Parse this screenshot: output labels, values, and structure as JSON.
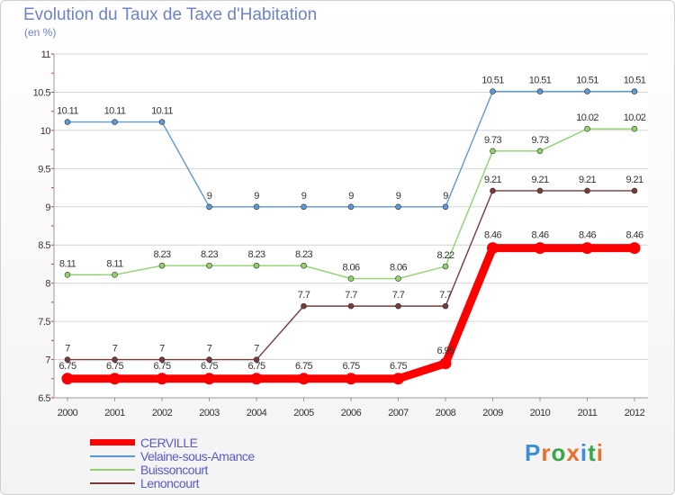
{
  "title": "Evolution du Taux de Taxe d'Habitation",
  "subtitle": "(en %)",
  "logo": {
    "text": "Proxiti",
    "colors": [
      "#3a8fd8",
      "#e8702a",
      "#3aa64a",
      "#e8702a",
      "#3a8fd8",
      "#3aa64a",
      "#e8702a"
    ]
  },
  "chart_data": {
    "type": "line",
    "title": "Evolution du Taux de Taxe d'Habitation",
    "ylabel": "(en %)",
    "xlabel": "",
    "x": [
      "2000",
      "2001",
      "2002",
      "2003",
      "2004",
      "2005",
      "2006",
      "2007",
      "2008",
      "2009",
      "2010",
      "2011",
      "2012"
    ],
    "ylim": [
      6.5,
      11
    ],
    "yticks": [
      6.5,
      7,
      7.5,
      8,
      8.5,
      9,
      9.5,
      10,
      10.5,
      11
    ],
    "ytick_labels": [
      "6.5",
      "7",
      "7.5",
      "8",
      "8.5",
      "9",
      "9.5",
      "10",
      "10.5",
      "11"
    ],
    "grid": "horizontal",
    "legend_position": "bottom-left",
    "series": [
      {
        "name": "CERVILLE",
        "color": "#ff0000",
        "thick": true,
        "values": [
          6.75,
          6.75,
          6.75,
          6.75,
          6.75,
          6.75,
          6.75,
          6.75,
          6.95,
          8.46,
          8.46,
          8.46,
          8.46
        ],
        "labels": [
          "6.75",
          "6.75",
          "6.75",
          "6.75",
          "6.75",
          "6.75",
          "6.75",
          "6.75",
          "6.95",
          "8.46",
          "8.46",
          "8.46",
          "8.46"
        ]
      },
      {
        "name": "Velaine-sous-Amance",
        "color": "#5b9ad6",
        "values": [
          10.11,
          10.11,
          10.11,
          9,
          9,
          9,
          9,
          9,
          9,
          10.51,
          10.51,
          10.51,
          10.51
        ],
        "labels": [
          "10.11",
          "10.11",
          "10.11",
          "9",
          "9",
          "9",
          "9",
          "9",
          "9",
          "10.51",
          "10.51",
          "10.51",
          "10.51"
        ]
      },
      {
        "name": "Buissoncourt",
        "color": "#8fd36a",
        "values": [
          8.11,
          8.11,
          8.23,
          8.23,
          8.23,
          8.23,
          8.06,
          8.06,
          8.22,
          9.73,
          9.73,
          10.02,
          10.02
        ],
        "labels": [
          "8.11",
          "8.11",
          "8.23",
          "8.23",
          "8.23",
          "8.23",
          "8.06",
          "8.06",
          "8.22",
          "9.73",
          "9.73",
          "10.02",
          "10.02"
        ]
      },
      {
        "name": "Lenoncourt",
        "color": "#7a3a3a",
        "values": [
          7,
          7,
          7,
          7,
          7,
          7.7,
          7.7,
          7.7,
          7.7,
          9.21,
          9.21,
          9.21,
          9.21
        ],
        "labels": [
          "7",
          "7",
          "7",
          "7",
          "7",
          "7.7",
          "7.7",
          "7.7",
          "7.7",
          "9.21",
          "9.21",
          "9.21",
          "9.21"
        ]
      }
    ]
  }
}
